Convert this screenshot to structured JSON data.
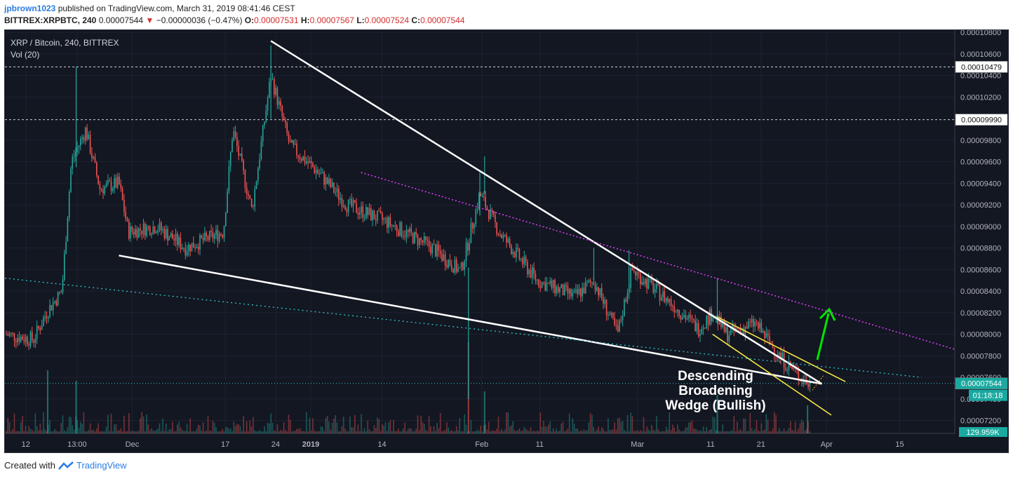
{
  "header": {
    "author": "jpbrown1023",
    "published_text": "published on TradingView.com, March 31, 2019 08:41:46 CEST",
    "symbol": "BITTREX:XRPBTC, 240",
    "last": "0.00007544",
    "change": "−0.00000036 (−0.47%)",
    "o_label": "O:",
    "o": "0.00007531",
    "h_label": "H:",
    "h": "0.00007567",
    "l_label": "L:",
    "l": "0.00007524",
    "c_label": "C:",
    "c": "0.00007544"
  },
  "legend": {
    "title": "XRP / Bitcoin, 240, BITTREX",
    "vol": "Vol (20)"
  },
  "annotation": {
    "line1": "Descending",
    "line2": "Broadening",
    "line3": "Wedge (Bullish)"
  },
  "footer": {
    "created_with": "Created with",
    "brand": "TradingView"
  },
  "colors": {
    "background": "#131722",
    "up": "#26a69a",
    "down": "#ef5350",
    "trendline": "#ffffff",
    "channel": "#f5e642",
    "resistance": "#e040fb",
    "support_dotted": "#2ec4c4",
    "arrow": "#00e600"
  },
  "chart_data": {
    "type": "candlestick",
    "ylim": [
      7.08e-05,
      0.0001082
    ],
    "y_ticks": [
      "0.00010800",
      "0.00010600",
      "0.00010400",
      "0.00010200",
      "0.00009800",
      "0.00009600",
      "0.00009400",
      "0.00009200",
      "0.00009000",
      "0.00008800",
      "0.00008600",
      "0.00008400",
      "0.00008200",
      "0.00008000",
      "0.00007800",
      "0.00007600",
      "0.00007400",
      "0.00007200"
    ],
    "x_ticks": [
      "12",
      "13:00",
      "Dec",
      "17",
      "24",
      "2019",
      "14",
      "Feb",
      "11",
      "Mar",
      "11",
      "21",
      "Apr",
      "15"
    ],
    "levels": [
      {
        "value": 0.00010479,
        "label": "0.00010479"
      },
      {
        "value": 9.99e-05,
        "label": "0.00009990"
      }
    ],
    "last_price": {
      "value": 7.544e-05,
      "label": "0.00007544"
    },
    "countdown": "01:18:18",
    "volume_label": "129.959K",
    "price_path": [
      [
        0.0,
        8e-05
      ],
      [
        0.03,
        7.95e-05
      ],
      [
        0.045,
        8.22e-05
      ],
      [
        0.06,
        8.4e-05
      ],
      [
        0.07,
        9.6e-05
      ],
      [
        0.085,
        9.9e-05
      ],
      [
        0.1,
        9.35e-05
      ],
      [
        0.12,
        9.4e-05
      ],
      [
        0.13,
        8.95e-05
      ],
      [
        0.16,
        9e-05
      ],
      [
        0.19,
        8.8e-05
      ],
      [
        0.23,
        8.95e-05
      ],
      [
        0.24,
        9.9e-05
      ],
      [
        0.26,
        9.15e-05
      ],
      [
        0.28,
        0.000104
      ],
      [
        0.3,
        9.75e-05
      ],
      [
        0.33,
        9.5e-05
      ],
      [
        0.36,
        9.2e-05
      ],
      [
        0.4,
        9.05e-05
      ],
      [
        0.45,
        8.8e-05
      ],
      [
        0.48,
        8.58e-05
      ],
      [
        0.5,
        9.3e-05
      ],
      [
        0.52,
        8.95e-05
      ],
      [
        0.56,
        8.5e-05
      ],
      [
        0.6,
        8.35e-05
      ],
      [
        0.62,
        8.5e-05
      ],
      [
        0.645,
        8e-05
      ],
      [
        0.66,
        8.6e-05
      ],
      [
        0.7,
        8.3e-05
      ],
      [
        0.73,
        8.05e-05
      ],
      [
        0.745,
        8.2e-05
      ],
      [
        0.76,
        8e-05
      ],
      [
        0.79,
        8.1e-05
      ],
      [
        0.82,
        7.75e-05
      ],
      [
        0.845,
        7.54e-05
      ]
    ],
    "spikes": [
      [
        0.075,
        0.0001048,
        9.55e-05
      ],
      [
        0.28,
        0.0001068,
        0.0001
      ],
      [
        0.5,
        9.5e-05,
        9.1e-05
      ],
      [
        0.488,
        8.62e-05,
        7.4e-05
      ],
      [
        0.505,
        9.65e-05,
        9.3e-05
      ],
      [
        0.62,
        8.8e-05,
        8.5e-05
      ],
      [
        0.657,
        8.78e-05,
        8.4e-05
      ],
      [
        0.75,
        8.52e-05,
        8.1e-05
      ]
    ],
    "lines": [
      {
        "name": "upper-trendline",
        "kind": "white",
        "from": [
          0.28,
          0.0001072
        ],
        "to": [
          0.86,
          7.54e-05
        ]
      },
      {
        "name": "lower-trendline",
        "kind": "white",
        "from": [
          0.12,
          8.73e-05
        ],
        "to": [
          0.86,
          7.54e-05
        ]
      },
      {
        "name": "resistance-line",
        "kind": "magenta",
        "from": [
          0.375,
          9.5e-05
        ],
        "to": [
          1.0,
          7.86e-05
        ]
      },
      {
        "name": "support-dotted",
        "kind": "cyan",
        "from": [
          0.0,
          8.52e-05
        ],
        "to": [
          0.965,
          7.6e-05
        ]
      },
      {
        "name": "channel-upper",
        "kind": "yellow",
        "from": [
          0.75,
          8.16e-05
        ],
        "to": [
          0.885,
          7.56e-05
        ]
      },
      {
        "name": "channel-lower",
        "kind": "yellow",
        "from": [
          0.745,
          8e-05
        ],
        "to": [
          0.87,
          7.25e-05
        ]
      }
    ]
  }
}
